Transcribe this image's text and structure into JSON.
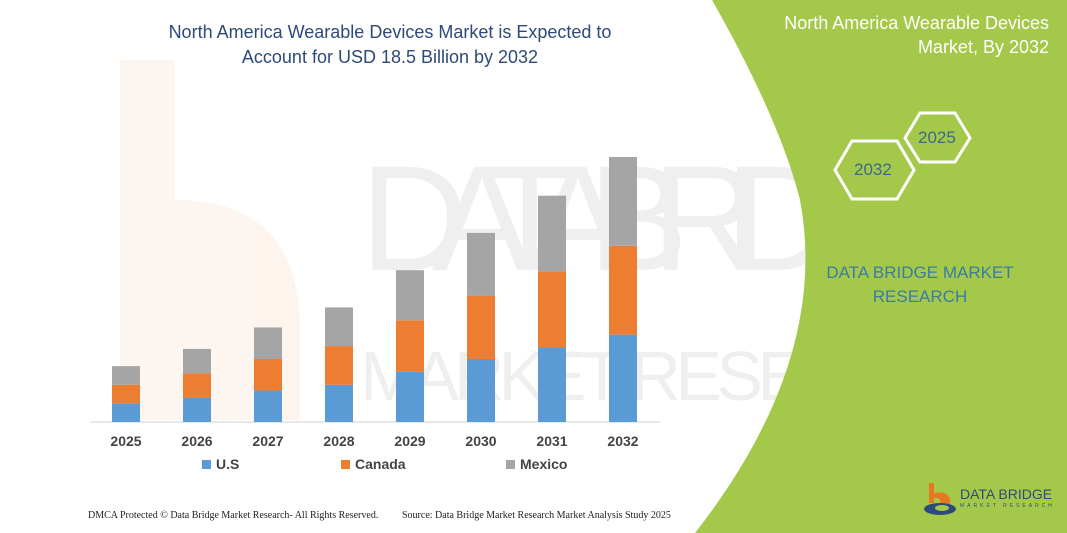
{
  "title": "North America Wearable Devices Market is Expected to Account for USD 18.5 Billion by 2032",
  "side_panel": {
    "title": "North America Wearable Devices Market, By 2032",
    "hex_labels": [
      "2032",
      "2025"
    ],
    "brand_text": "DATA BRIDGE MARKET RESEARCH",
    "color": "#a4c94a"
  },
  "logo": {
    "name": "DATA BRIDGE",
    "sub": "MARKET RESEARCH"
  },
  "footer": {
    "left": "DMCA Protected © Data Bridge Market Research- All Rights Reserved.",
    "right": "Source: Data Bridge Market Research Market Analysis Study 2025"
  },
  "chart_data": {
    "type": "bar",
    "stacked": true,
    "title": "North America Wearable Devices Market is Expected to Account for USD 18.5 Billion by 2032",
    "categories": [
      "2025",
      "2026",
      "2027",
      "2028",
      "2029",
      "2030",
      "2031",
      "2032"
    ],
    "series": [
      {
        "name": "U.S",
        "color": "#5b9bd5",
        "values": [
          1.3,
          1.7,
          2.2,
          2.6,
          3.5,
          4.4,
          5.2,
          6.1
        ]
      },
      {
        "name": "Canada",
        "color": "#ed7d31",
        "values": [
          1.3,
          1.7,
          2.2,
          2.7,
          3.6,
          4.4,
          5.3,
          6.2
        ]
      },
      {
        "name": "Mexico",
        "color": "#a5a5a5",
        "values": [
          1.3,
          1.7,
          2.2,
          2.7,
          3.5,
          4.4,
          5.3,
          6.2
        ]
      }
    ],
    "grid": false,
    "y_axis_shown": false,
    "legend": "bottom"
  }
}
